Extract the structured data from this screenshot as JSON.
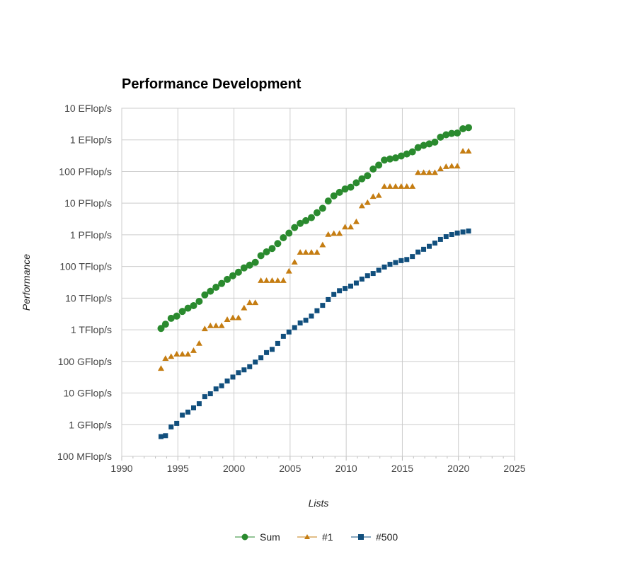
{
  "chart_data": {
    "type": "scatter",
    "title": "Performance Development",
    "xlabel": "Lists",
    "ylabel": "Performance",
    "xlim": [
      1990,
      2025
    ],
    "xticks": [
      "1990",
      "1995",
      "2000",
      "2005",
      "2010",
      "2015",
      "2020",
      "2025"
    ],
    "ylim_flops": [
      100000000.0,
      1e+19
    ],
    "yscale": "log",
    "yticks": [
      "100 MFlop/s",
      "1 GFlop/s",
      "10 GFlop/s",
      "100 GFlop/s",
      "1 TFlop/s",
      "10 TFlop/s",
      "100 TFlop/s",
      "1 PFlop/s",
      "10 PFlop/s",
      "100 PFlop/s",
      "1 EFlop/s",
      "10 EFlop/s"
    ],
    "grid": true,
    "legend": "bottom-center",
    "series": [
      {
        "name": "Sum",
        "color": "#2a8a2e",
        "marker": "circle",
        "x": [
          1993.5,
          1993.9,
          1994.4,
          1994.9,
          1995.4,
          1995.9,
          1996.4,
          1996.9,
          1997.4,
          1997.9,
          1998.4,
          1998.9,
          1999.4,
          1999.9,
          2000.4,
          2000.9,
          2001.4,
          2001.9,
          2002.4,
          2002.9,
          2003.4,
          2003.9,
          2004.4,
          2004.9,
          2005.4,
          2005.9,
          2006.4,
          2006.9,
          2007.4,
          2007.9,
          2008.4,
          2008.9,
          2009.4,
          2009.9,
          2010.4,
          2010.9,
          2011.4,
          2011.9,
          2012.4,
          2012.9,
          2013.4,
          2013.9,
          2014.4,
          2014.9,
          2015.4,
          2015.9,
          2016.4,
          2016.9,
          2017.4,
          2017.9,
          2018.4,
          2018.9,
          2019.4,
          2019.9,
          2020.4,
          2020.9
        ],
        "y": [
          1100000000000.0,
          1500000000000.0,
          2300000000000.0,
          2700000000000.0,
          3800000000000.0,
          4800000000000.0,
          5800000000000.0,
          7900000000000.0,
          12600000000000.0,
          16500000000000.0,
          22000000000000.0,
          29000000000000.0,
          39000000000000.0,
          51000000000000.0,
          66000000000000.0,
          90000000000000.0,
          110000000000000.0,
          135000000000000.0,
          220000000000000.0,
          290000000000000.0,
          370000000000000.0,
          530000000000000.0,
          810000000000000.0,
          1130000000000000.0,
          1700000000000000.0,
          2300000000000000.0,
          2800000000000000.0,
          3500000000000000.0,
          5000000000000000.0,
          6900000000000000.0,
          1.17e+16,
          1.7e+16,
          2.2e+16,
          2.8e+16,
          3.2e+16,
          4.4e+16,
          5.9e+16,
          7.4e+16,
          1.2e+17,
          1.6e+17,
          2.3e+17,
          2.5e+17,
          2.7e+17,
          3.1e+17,
          3.6e+17,
          4.2e+17,
          5.7e+17,
          6.7e+17,
          7.5e+17,
          8.5e+17,
          1.22e+18,
          1.45e+18,
          1.6e+18,
          1.65e+18,
          2.25e+18,
          2.45e+18
        ]
      },
      {
        "name": "#1",
        "color": "#c57d12",
        "marker": "triangle",
        "x": [
          1993.5,
          1993.9,
          1994.4,
          1994.9,
          1995.4,
          1995.9,
          1996.4,
          1996.9,
          1997.4,
          1997.9,
          1998.4,
          1998.9,
          1999.4,
          1999.9,
          2000.4,
          2000.9,
          2001.4,
          2001.9,
          2002.4,
          2002.9,
          2003.4,
          2003.9,
          2004.4,
          2004.9,
          2005.4,
          2005.9,
          2006.4,
          2006.9,
          2007.4,
          2007.9,
          2008.4,
          2008.9,
          2009.4,
          2009.9,
          2010.4,
          2010.9,
          2011.4,
          2011.9,
          2012.4,
          2012.9,
          2013.4,
          2013.9,
          2014.4,
          2014.9,
          2015.4,
          2015.9,
          2016.4,
          2016.9,
          2017.4,
          2017.9,
          2018.4,
          2018.9,
          2019.4,
          2019.9,
          2020.4,
          2020.9
        ],
        "y": [
          60000000000.0,
          124000000000.0,
          143000000000.0,
          170000000000.0,
          170000000000.0,
          170000000000.0,
          220000000000.0,
          370000000000.0,
          1070000000000.0,
          1340000000000.0,
          1340000000000.0,
          1340000000000.0,
          2100000000000.0,
          2400000000000.0,
          2400000000000.0,
          4900000000000.0,
          7200000000000.0,
          7200000000000.0,
          36000000000000.0,
          36000000000000.0,
          36000000000000.0,
          36000000000000.0,
          36000000000000.0,
          71000000000000.0,
          137000000000000.0,
          280000000000000.0,
          280000000000000.0,
          280000000000000.0,
          280000000000000.0,
          480000000000000.0,
          1030000000000000.0,
          1100000000000000.0,
          1100000000000000.0,
          1760000000000000.0,
          1760000000000000.0,
          2600000000000000.0,
          8200000000000000.0,
          1.05e+16,
          1.63e+16,
          1.76e+16,
          3.39e+16,
          3.39e+16,
          3.39e+16,
          3.39e+16,
          3.39e+16,
          3.39e+16,
          9.3e+16,
          9.3e+16,
          9.3e+16,
          9.3e+16,
          1.22e+17,
          1.43e+17,
          1.49e+17,
          1.49e+17,
          4.42e+17,
          4.42e+17
        ]
      },
      {
        "name": "#500",
        "color": "#114f7d",
        "marker": "square",
        "x": [
          1993.5,
          1993.9,
          1994.4,
          1994.9,
          1995.4,
          1995.9,
          1996.4,
          1996.9,
          1997.4,
          1997.9,
          1998.4,
          1998.9,
          1999.4,
          1999.9,
          2000.4,
          2000.9,
          2001.4,
          2001.9,
          2002.4,
          2002.9,
          2003.4,
          2003.9,
          2004.4,
          2004.9,
          2005.4,
          2005.9,
          2006.4,
          2006.9,
          2007.4,
          2007.9,
          2008.4,
          2008.9,
          2009.4,
          2009.9,
          2010.4,
          2010.9,
          2011.4,
          2011.9,
          2012.4,
          2012.9,
          2013.4,
          2013.9,
          2014.4,
          2014.9,
          2015.4,
          2015.9,
          2016.4,
          2016.9,
          2017.4,
          2017.9,
          2018.4,
          2018.9,
          2019.4,
          2019.9,
          2020.4,
          2020.9
        ],
        "y": [
          420000000.0,
          450000000.0,
          850000000.0,
          1100000000.0,
          2000000000.0,
          2500000000.0,
          3400000000.0,
          4600000000.0,
          7700000000.0,
          9500000000.0,
          13500000000.0,
          17000000000.0,
          24000000000.0,
          32000000000.0,
          44000000000.0,
          54000000000.0,
          68000000000.0,
          95000000000.0,
          130000000000.0,
          190000000000.0,
          240000000000.0,
          370000000000.0,
          620000000000.0,
          850000000000.0,
          1170000000000.0,
          1640000000000.0,
          2000000000000.0,
          2700000000000.0,
          4000000000000.0,
          5900000000000.0,
          9000000000000.0,
          13000000000000.0,
          17200000000000.0,
          20300000000000.0,
          24000000000000.0,
          30000000000000.0,
          40000000000000.0,
          51000000000000.0,
          60000000000000.0,
          76000000000000.0,
          96000000000000.0,
          117000000000000.0,
          133000000000000.0,
          153000000000000.0,
          166000000000000.0,
          206000000000000.0,
          286000000000000.0,
          349000000000000.0,
          432000000000000.0,
          548000000000000.0,
          715000000000000.0,
          874000000000000.0,
          1020000000000000.0,
          1140000000000000.0,
          1230000000000000.0,
          1320000000000000.0
        ]
      }
    ]
  }
}
